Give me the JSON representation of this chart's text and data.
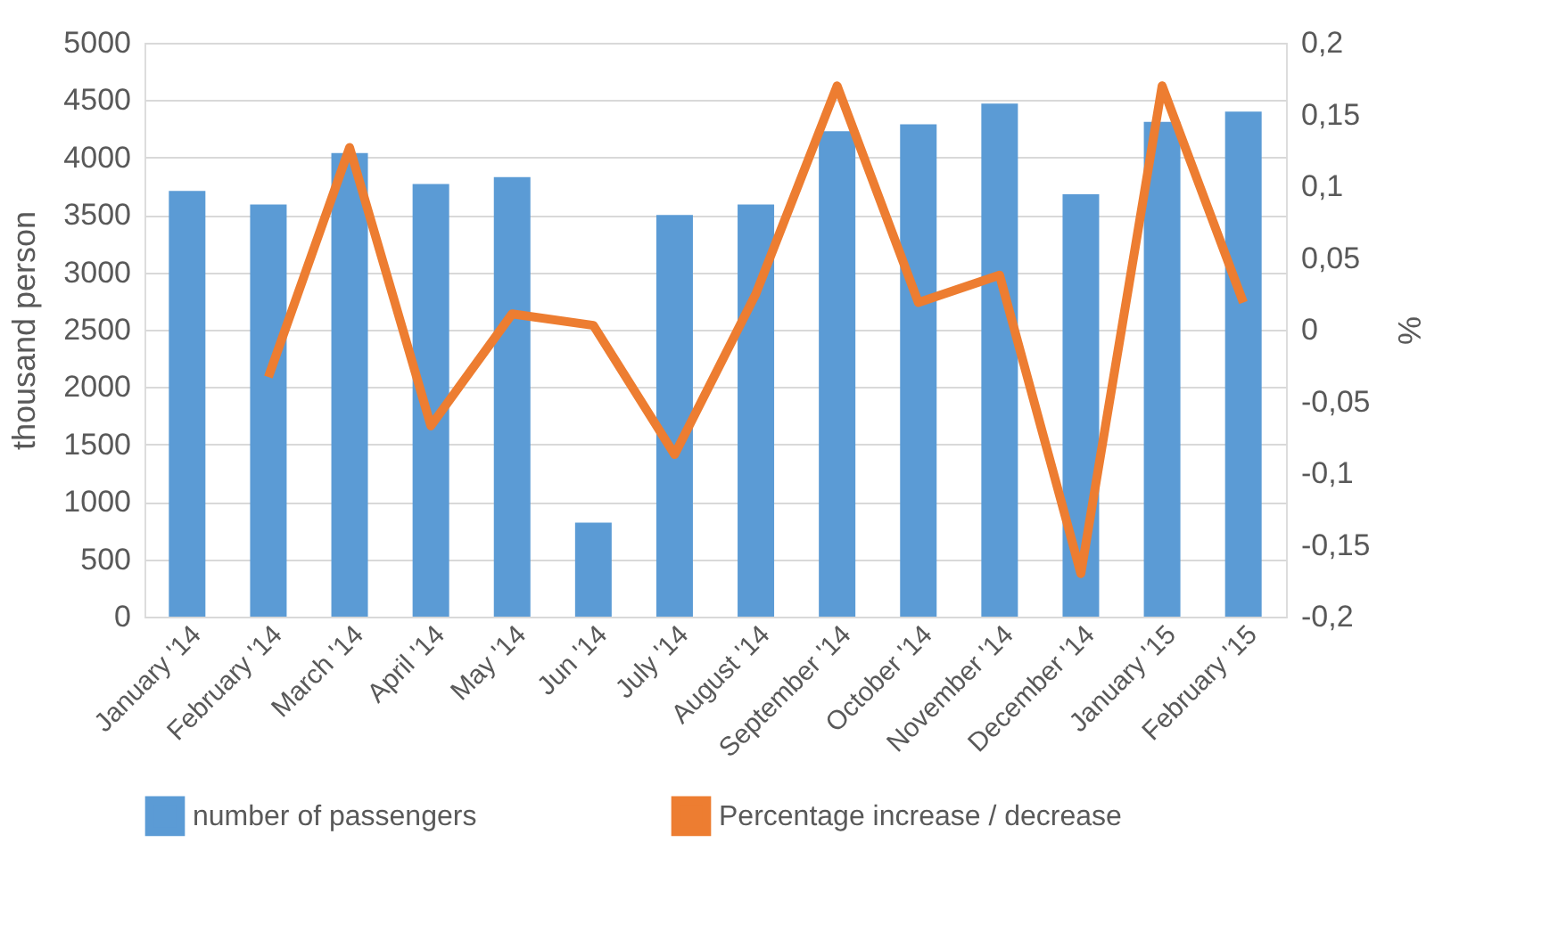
{
  "chart_data": {
    "type": "bar",
    "ylabel": "thousand person",
    "y2label": "%",
    "categories": [
      "January '14",
      "February '14",
      "March '14",
      "April '14",
      "May '14",
      "Jun '14",
      "July '14",
      "August '14",
      "September '14",
      "October '14",
      "November '14",
      "December '14",
      "January '15",
      "February '15"
    ],
    "series": [
      {
        "name": "number of passengers",
        "color": "#5b9bd5",
        "values": [
          3710,
          3590,
          4040,
          3770,
          3830,
          820,
          3500,
          3590,
          4230,
          4290,
          4470,
          3680,
          4310,
          4400
        ]
      },
      {
        "name": "Percentage increase / decrease",
        "type": "line",
        "axis": "y2",
        "line_style": "solid",
        "color": "#ed7d31",
        "values": [
          null,
          -0.033,
          0.127,
          -0.067,
          0.011,
          0.003,
          -0.087,
          0.025,
          0.17,
          0.019,
          0.038,
          -0.17,
          0.17,
          0.019
        ]
      }
    ],
    "ylim": [
      0,
      5000
    ],
    "yticks": [
      0,
      500,
      1000,
      1500,
      2000,
      2500,
      3000,
      3500,
      4000,
      4500,
      5000
    ],
    "y2lim": [
      -0.2,
      0.2
    ],
    "y2ticks": [
      {
        "value": -0.2,
        "label": "-0,2"
      },
      {
        "value": -0.15,
        "label": "-0,15"
      },
      {
        "value": -0.1,
        "label": "-0,1"
      },
      {
        "value": -0.05,
        "label": "-0,05"
      },
      0,
      {
        "value": 0.05,
        "label": "0,05"
      },
      {
        "value": 0.1,
        "label": "0,1"
      },
      {
        "value": 0.15,
        "label": "0,15"
      },
      {
        "value": 0.2,
        "label": "0,2"
      }
    ],
    "grid": "y",
    "legend": "bottom"
  }
}
